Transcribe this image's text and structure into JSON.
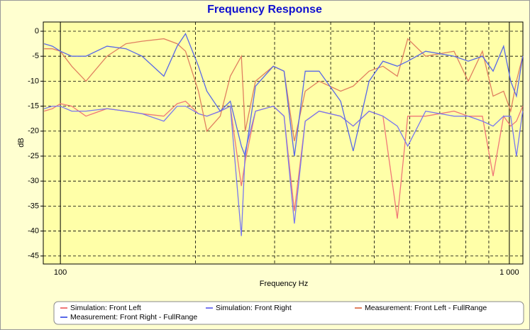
{
  "chart_data": {
    "type": "line",
    "title": "Frequency Response",
    "x_label": "Frequency Hz",
    "y_label": "dB",
    "log_x": true,
    "grid": true,
    "legend": "bottom",
    "xlim": [
      91.6,
      1072
    ],
    "ylim": [
      -46.6,
      1.85
    ],
    "xticks": [
      100,
      {
        "value": 1000,
        "label": "1 000"
      }
    ],
    "xgrid": [
      200,
      300,
      400,
      500,
      600,
      700,
      800,
      900
    ],
    "yticks": [
      0,
      -5,
      -10,
      -15,
      -20,
      -25,
      -30,
      -35,
      -40,
      -45
    ],
    "x": [
      92,
      96,
      100,
      106,
      114,
      127,
      140,
      152,
      170,
      182,
      190,
      203,
      212,
      227,
      239,
      253,
      258,
      272,
      298,
      315,
      332,
      351,
      377,
      421,
      449,
      487,
      523,
      563,
      594,
      651,
      753,
      810,
      871,
      920,
      971,
      1007,
      1037,
      1071
    ],
    "series": [
      {
        "name": "Simulation: Front Left",
        "color": "#f07878",
        "values": [
          -16,
          -15.5,
          -14.5,
          -15,
          -17,
          -15.5,
          -16,
          -16.5,
          -17,
          -14.5,
          -14,
          -16.5,
          -17,
          -16,
          -15,
          -31,
          -26,
          -16,
          -15,
          -17,
          -36,
          -18,
          -16,
          -17,
          -19,
          -16,
          -17,
          -37.5,
          -17,
          -17,
          -16,
          -17,
          -17,
          -29,
          -17,
          -19,
          -18,
          -15
        ]
      },
      {
        "name": "Simulation: Front Right",
        "color": "#7878f0",
        "values": [
          -15.5,
          -15,
          -15,
          -16,
          -16,
          -15.5,
          -16,
          -16.5,
          -18,
          -15,
          -15,
          -16.5,
          -17,
          -16,
          -15,
          -41,
          -24,
          -16,
          -15,
          -17,
          -38.5,
          -18,
          -16,
          -17,
          -19,
          -16,
          -17,
          -19,
          -23,
          -16,
          -17,
          -17,
          -18,
          -19,
          -17,
          -17,
          -25,
          -16
        ]
      },
      {
        "name": "Measurement: Front Left - FullRange",
        "color": "#e08060",
        "values": [
          -3.5,
          -3.5,
          -4,
          -7,
          -10,
          -5,
          -2.5,
          -2,
          -1.5,
          -2.5,
          -4,
          -12,
          -20,
          -17,
          -9,
          -5,
          -20,
          -10,
          -7,
          -8,
          -22,
          -12,
          -10,
          -12,
          -11,
          -8,
          -7,
          -9,
          -1.5,
          -5,
          -4,
          -10,
          -4,
          -13,
          -12,
          -16,
          -10,
          -5
        ]
      },
      {
        "name": "Measurement: Front Right - FullRange",
        "color": "#5868e8",
        "values": [
          -2.5,
          -3,
          -4,
          -5,
          -5,
          -3,
          -3.5,
          -5,
          -9,
          -3,
          -0.5,
          -7,
          -12,
          -16,
          -14,
          -23,
          -25,
          -11,
          -7,
          -8,
          -25,
          -8,
          -8,
          -14,
          -24,
          -10,
          -6,
          -7,
          -6,
          -4,
          -5,
          -6,
          -5,
          -8,
          -3,
          -10,
          -13,
          -5
        ]
      }
    ]
  }
}
